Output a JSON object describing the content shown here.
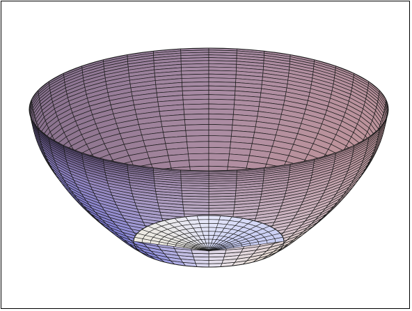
{
  "figure": {
    "kind": "3d-surface-funnel",
    "frame_color": "#000000",
    "background": "#ffffff",
    "mesh_line_color": "#1a1a1a",
    "mesh": {
      "rings": 34,
      "meridians": 40
    },
    "palette": {
      "top_face": "#a58aa6",
      "dark_side": "#2c2148",
      "warm_side": "#e0a08a",
      "blue_shade": "#3c3fd0",
      "highlight": "#f3f3ff",
      "cream": "#f5ecc2"
    }
  }
}
